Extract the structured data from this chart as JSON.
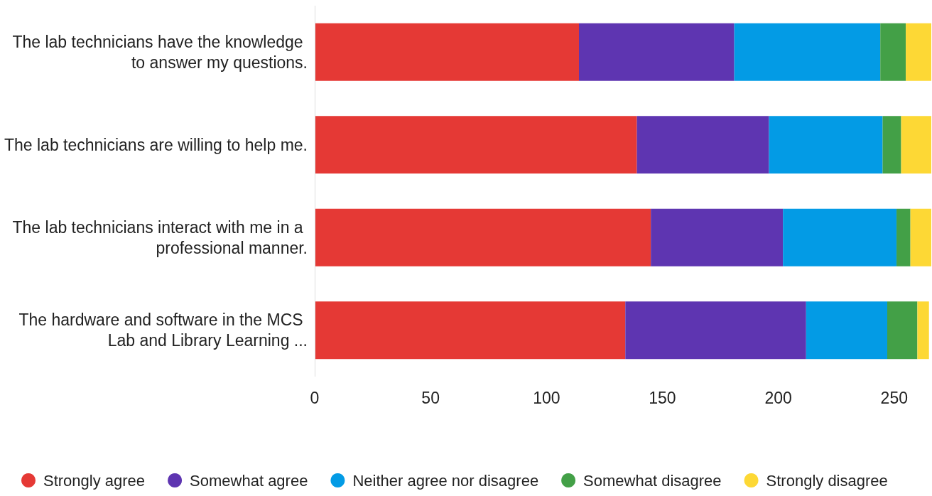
{
  "chart_data": {
    "type": "bar",
    "orientation": "horizontal",
    "stacked": true,
    "categories": [
      "The lab technicians have the knowledge to answer my questions.",
      "The lab technicians are willing to help me.",
      "The lab technicians interact with me in a professional manner.",
      "The hardware and software in the MCS Lab and Library Learning ..."
    ],
    "series": [
      {
        "name": "Strongly agree",
        "color": "#e53935",
        "values": [
          114,
          139,
          145,
          134
        ]
      },
      {
        "name": "Somewhat agree",
        "color": "#5e35b1",
        "values": [
          67,
          57,
          57,
          78
        ]
      },
      {
        "name": "Neither agree nor disagree",
        "color": "#039be5",
        "values": [
          63,
          49,
          49,
          35
        ]
      },
      {
        "name": "Somewhat disagree",
        "color": "#43a047",
        "values": [
          11,
          8,
          6,
          13
        ]
      },
      {
        "name": "Strongly disagree",
        "color": "#fdd835",
        "values": [
          11,
          13,
          9,
          5
        ]
      }
    ],
    "xlim": [
      0,
      266
    ],
    "xticks": [
      0,
      50,
      100,
      150,
      200,
      250
    ],
    "grid": false,
    "legend": "bottom"
  }
}
